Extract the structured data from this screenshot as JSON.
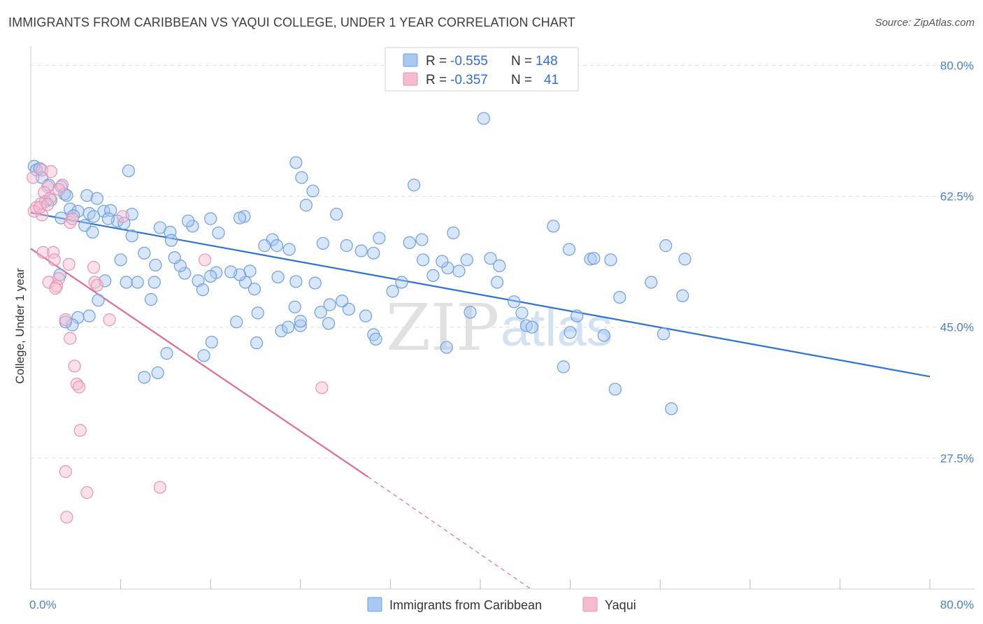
{
  "title": "IMMIGRANTS FROM CARIBBEAN VS YAQUI COLLEGE, UNDER 1 YEAR CORRELATION CHART",
  "source": "Source: ZipAtlas.com",
  "watermark": {
    "part1": "ZIP",
    "part2": "atlas"
  },
  "colors": {
    "blue": "#2f72d0",
    "blue_fill": "#a9c8f2",
    "blue_stroke": "#6d9ee0",
    "pink": "#e06c95",
    "pink_fill": "#f5bccf",
    "pink_stroke": "#e893b1",
    "grid": "#dddddd",
    "tick_label": "#4a7ecf"
  },
  "legend": {
    "r_label": "R =",
    "n_label": "N =",
    "rows": [
      {
        "r": "-0.555",
        "n": "148"
      },
      {
        "r": "-0.357",
        "n": "41"
      }
    ]
  },
  "chart_data": {
    "type": "scatter",
    "title": "IMMIGRANTS FROM CARIBBEAN VS YAQUI COLLEGE, UNDER 1 YEAR CORRELATION CHART",
    "xlabel": "",
    "ylabel": "College, Under 1 year",
    "xlim": [
      0,
      80
    ],
    "ylim": [
      10,
      82
    ],
    "x_tick_labels": [
      "0.0%",
      "80.0%"
    ],
    "y_ticks": [
      27.5,
      45.0,
      62.5,
      80.0
    ],
    "y_tick_labels": [
      "27.5%",
      "45.0%",
      "62.5%",
      "80.0%"
    ],
    "grid": true,
    "legend_position": "top-center",
    "series": [
      {
        "name": "Immigrants from Caribbean",
        "color": "#2f72d0",
        "trend": {
          "x0": 0,
          "y0": 60.3,
          "x1": 80,
          "y1": 38.4
        },
        "points": [
          [
            0.3,
            66.5
          ],
          [
            0.5,
            66.0
          ],
          [
            0.8,
            66.2
          ],
          [
            1.0,
            65.0
          ],
          [
            1.6,
            64.0
          ],
          [
            2.7,
            63.8
          ],
          [
            3.0,
            62.8
          ],
          [
            3.2,
            62.6
          ],
          [
            1.3,
            61.8
          ],
          [
            1.8,
            62.0
          ],
          [
            3.5,
            60.8
          ],
          [
            5.0,
            62.6
          ],
          [
            5.9,
            62.2
          ],
          [
            5.2,
            60.2
          ],
          [
            4.2,
            60.5
          ],
          [
            3.8,
            59.9
          ],
          [
            6.5,
            60.5
          ],
          [
            7.1,
            60.6
          ],
          [
            7.7,
            59.2
          ],
          [
            8.3,
            58.9
          ],
          [
            9.0,
            60.1
          ],
          [
            6.9,
            59.5
          ],
          [
            5.6,
            59.8
          ],
          [
            2.7,
            59.6
          ],
          [
            4.8,
            58.6
          ],
          [
            5.5,
            57.7
          ],
          [
            8.7,
            65.9
          ],
          [
            9.0,
            57.2
          ],
          [
            11.5,
            58.3
          ],
          [
            12.4,
            57.7
          ],
          [
            14.4,
            58.5
          ],
          [
            16.0,
            59.5
          ],
          [
            14.0,
            59.2
          ],
          [
            12.5,
            56.6
          ],
          [
            16.7,
            57.6
          ],
          [
            19.0,
            59.8
          ],
          [
            18.6,
            59.6
          ],
          [
            21.5,
            56.7
          ],
          [
            20.8,
            55.9
          ],
          [
            21.9,
            55.9
          ],
          [
            23.0,
            55.4
          ],
          [
            23.6,
            67.0
          ],
          [
            24.1,
            65.0
          ],
          [
            25.1,
            63.2
          ],
          [
            24.5,
            61.3
          ],
          [
            27.2,
            60.1
          ],
          [
            26.0,
            56.2
          ],
          [
            28.1,
            55.9
          ],
          [
            29.4,
            55.2
          ],
          [
            30.5,
            54.9
          ],
          [
            31.0,
            56.9
          ],
          [
            34.1,
            64.0
          ],
          [
            33.7,
            56.3
          ],
          [
            34.8,
            56.7
          ],
          [
            37.6,
            57.6
          ],
          [
            40.3,
            72.9
          ],
          [
            37.0,
            42.3
          ],
          [
            38.8,
            54.0
          ],
          [
            38.1,
            52.5
          ],
          [
            37.1,
            52.9
          ],
          [
            36.6,
            53.8
          ],
          [
            34.9,
            54.0
          ],
          [
            40.9,
            54.2
          ],
          [
            41.7,
            53.2
          ],
          [
            43.0,
            48.4
          ],
          [
            43.7,
            46.9
          ],
          [
            44.1,
            45.2
          ],
          [
            47.9,
            55.4
          ],
          [
            46.5,
            58.5
          ],
          [
            49.8,
            54.1
          ],
          [
            50.1,
            54.2
          ],
          [
            51.6,
            54.0
          ],
          [
            48.6,
            46.5
          ],
          [
            48.0,
            44.3
          ],
          [
            47.4,
            39.7
          ],
          [
            52.4,
            49.0
          ],
          [
            55.2,
            51.0
          ],
          [
            58.0,
            49.2
          ],
          [
            56.5,
            55.9
          ],
          [
            58.2,
            54.1
          ],
          [
            56.3,
            44.1
          ],
          [
            51.0,
            43.9
          ],
          [
            52.0,
            36.7
          ],
          [
            57.0,
            34.1
          ],
          [
            44.6,
            45.0
          ],
          [
            39.1,
            47.0
          ],
          [
            41.5,
            51.0
          ],
          [
            35.8,
            51.9
          ],
          [
            33.0,
            51.0
          ],
          [
            32.2,
            49.8
          ],
          [
            30.5,
            44.0
          ],
          [
            29.8,
            46.5
          ],
          [
            30.7,
            43.4
          ],
          [
            28.3,
            47.4
          ],
          [
            27.7,
            48.5
          ],
          [
            26.6,
            48.0
          ],
          [
            25.3,
            50.9
          ],
          [
            24.0,
            45.2
          ],
          [
            25.8,
            47.0
          ],
          [
            24.0,
            45.8
          ],
          [
            23.5,
            47.7
          ],
          [
            22.3,
            44.5
          ],
          [
            23.6,
            51.1
          ],
          [
            22.0,
            51.7
          ],
          [
            20.1,
            42.9
          ],
          [
            19.9,
            50.1
          ],
          [
            19.5,
            52.5
          ],
          [
            19.1,
            51.0
          ],
          [
            18.6,
            52.0
          ],
          [
            17.8,
            52.4
          ],
          [
            16.5,
            52.3
          ],
          [
            16.0,
            51.8
          ],
          [
            14.9,
            51.2
          ],
          [
            15.3,
            50.0
          ],
          [
            13.7,
            52.2
          ],
          [
            13.3,
            53.2
          ],
          [
            12.8,
            54.3
          ],
          [
            11.1,
            53.3
          ],
          [
            10.1,
            54.9
          ],
          [
            8.0,
            54.0
          ],
          [
            6.6,
            51.2
          ],
          [
            6.0,
            48.6
          ],
          [
            5.2,
            46.5
          ],
          [
            4.2,
            46.3
          ],
          [
            3.7,
            45.3
          ],
          [
            10.7,
            48.7
          ],
          [
            11.0,
            51.0
          ],
          [
            9.5,
            51.0
          ],
          [
            8.5,
            51.0
          ],
          [
            2.6,
            52.0
          ],
          [
            3.1,
            45.7
          ],
          [
            26.5,
            45.5
          ],
          [
            22.9,
            45.0
          ],
          [
            20.2,
            46.9
          ],
          [
            18.3,
            45.7
          ],
          [
            16.1,
            43.0
          ],
          [
            15.4,
            41.2
          ],
          [
            12.1,
            41.5
          ],
          [
            11.3,
            38.9
          ],
          [
            10.1,
            38.3
          ]
        ]
      },
      {
        "name": "Yaqui",
        "color": "#e06c95",
        "trend": {
          "x0": 0,
          "y0": 55.5,
          "x1": 30,
          "y1": 25.0
        },
        "trend_dashed": {
          "x0": 30,
          "y0": 25.0,
          "x1": 44.5,
          "y1": 10.0
        },
        "points": [
          [
            0.2,
            65.0
          ],
          [
            1.0,
            66.0
          ],
          [
            1.8,
            65.8
          ],
          [
            2.8,
            64.0
          ],
          [
            1.5,
            63.8
          ],
          [
            2.5,
            63.4
          ],
          [
            1.2,
            63.0
          ],
          [
            1.7,
            62.2
          ],
          [
            0.9,
            61.5
          ],
          [
            0.5,
            61.0
          ],
          [
            0.3,
            60.5
          ],
          [
            1.0,
            60.0
          ],
          [
            0.8,
            61.0
          ],
          [
            1.5,
            61.4
          ],
          [
            3.5,
            59.0
          ],
          [
            8.2,
            59.8
          ],
          [
            3.7,
            59.5
          ],
          [
            1.1,
            55.0
          ],
          [
            2.0,
            55.0
          ],
          [
            2.1,
            54.0
          ],
          [
            3.4,
            53.4
          ],
          [
            5.6,
            53.0
          ],
          [
            15.5,
            54.0
          ],
          [
            1.6,
            51.0
          ],
          [
            2.5,
            51.5
          ],
          [
            2.3,
            50.5
          ],
          [
            5.7,
            51.0
          ],
          [
            5.9,
            50.6
          ],
          [
            2.2,
            50.2
          ],
          [
            3.1,
            46.0
          ],
          [
            7.0,
            46.0
          ],
          [
            3.5,
            43.5
          ],
          [
            3.9,
            39.8
          ],
          [
            4.1,
            37.4
          ],
          [
            4.3,
            37.0
          ],
          [
            25.9,
            36.9
          ],
          [
            4.4,
            31.2
          ],
          [
            3.1,
            25.7
          ],
          [
            5.0,
            22.9
          ],
          [
            11.5,
            23.6
          ],
          [
            3.2,
            19.6
          ]
        ]
      }
    ]
  },
  "axis": {
    "ylabel": "College, Under 1 year",
    "x_left_label": "0.0%",
    "x_right_label": "80.0%",
    "y_labels": [
      "80.0%",
      "62.5%",
      "45.0%",
      "27.5%"
    ]
  },
  "bottom_legend": {
    "items": [
      "Immigrants from Caribbean",
      "Yaqui"
    ]
  }
}
